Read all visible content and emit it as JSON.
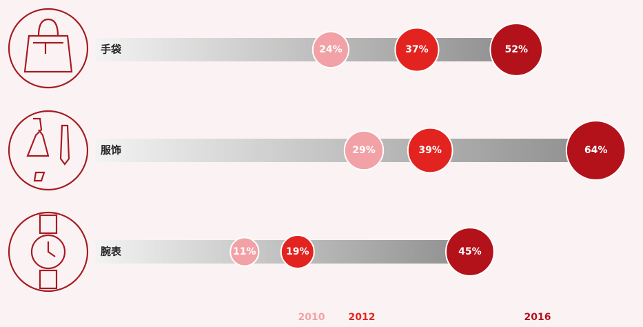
{
  "chart_data": {
    "type": "bubble",
    "categories": [
      "手袋",
      "服饰",
      "腕表"
    ],
    "series": [
      {
        "name": "2010",
        "color": "#f2a2a6",
        "values": [
          24,
          29,
          11
        ],
        "value_labels": [
          "24%",
          "29%",
          "11%"
        ]
      },
      {
        "name": "2012",
        "color": "#e3231f",
        "values": [
          37,
          39,
          19
        ],
        "value_labels": [
          "37%",
          "39%",
          "19%"
        ]
      },
      {
        "name": "2016",
        "color": "#b3121b",
        "values": [
          52,
          64,
          45
        ],
        "value_labels": [
          "52%",
          "64%",
          "45%"
        ]
      }
    ]
  }
}
